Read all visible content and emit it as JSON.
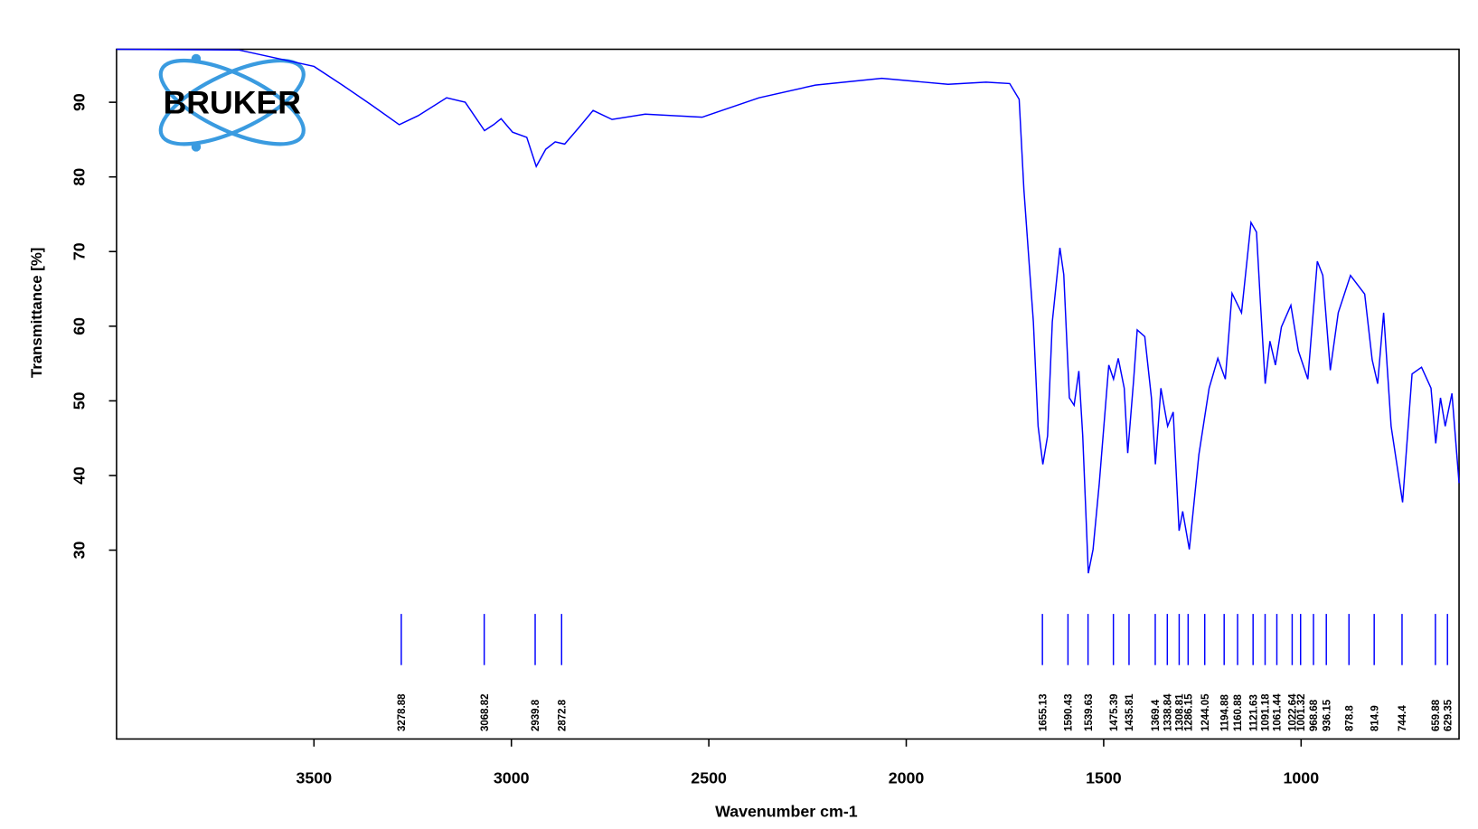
{
  "chart_data": {
    "type": "line",
    "logo": "BRUKER",
    "xlabel": "Wavenumber cm-1",
    "ylabel": "Transmittance [%]",
    "xlim": [
      4000,
      600
    ],
    "ylim": [
      4.7,
      97.1
    ],
    "xticks": [
      3500,
      3000,
      2500,
      2000,
      1500,
      1000
    ],
    "yticks": [
      30,
      40,
      50,
      60,
      70,
      80,
      90
    ],
    "color": "#0000ff",
    "x": [
      4000,
      3690,
      3500,
      3428,
      3356,
      3284,
      3236,
      3164,
      3117,
      3068,
      3045,
      3026,
      2997,
      2961,
      2937,
      2913,
      2889,
      2865,
      2829,
      2793,
      2745,
      2661,
      2517,
      2373,
      2230,
      2062,
      1894,
      1798,
      1738,
      1714,
      1702,
      1690,
      1678,
      1666,
      1654,
      1642,
      1630,
      1611,
      1601,
      1587,
      1575,
      1563,
      1553,
      1539,
      1527,
      1511,
      1487,
      1475,
      1463,
      1448,
      1439,
      1424,
      1415,
      1396,
      1379,
      1369,
      1355,
      1338,
      1324,
      1309,
      1300,
      1283,
      1259,
      1233,
      1211,
      1192,
      1175,
      1151,
      1127,
      1113,
      1103,
      1091,
      1079,
      1065,
      1050,
      1026,
      1007,
      983,
      959,
      945,
      926,
      906,
      875,
      839,
      820,
      806,
      791,
      772,
      743,
      719,
      695,
      671,
      659,
      647,
      635,
      618,
      600
    ],
    "values": [
      97.1,
      97,
      94.8,
      92.3,
      89.7,
      87,
      88.2,
      90.6,
      90,
      86.2,
      87,
      87.8,
      86,
      85.3,
      81.4,
      83.7,
      84.7,
      84.4,
      86.6,
      88.9,
      87.7,
      88.4,
      88,
      90.6,
      92.3,
      93.2,
      92.4,
      92.7,
      92.5,
      90.4,
      78.3,
      69.4,
      60.6,
      46.6,
      41.5,
      45.3,
      60.6,
      70.5,
      66.9,
      50.4,
      49.4,
      54,
      45.3,
      26.9,
      30.1,
      39,
      54.8,
      52.9,
      55.7,
      51.7,
      43,
      52.9,
      59.5,
      58.6,
      50.4,
      41.5,
      51.7,
      46.6,
      48.5,
      32.6,
      35.2,
      30.1,
      42.8,
      51.7,
      55.7,
      52.9,
      64.4,
      61.8,
      73.9,
      72.6,
      63.1,
      52.3,
      58,
      54.8,
      59.9,
      62.8,
      56.7,
      52.9,
      68.7,
      66.8,
      54.1,
      61.8,
      66.8,
      64.3,
      55.5,
      52.3,
      61.8,
      46.6,
      36.4,
      53.6,
      54.5,
      51.7,
      44.3,
      50.4,
      46.6,
      51,
      39
    ],
    "peaks": [
      3278.88,
      3068.82,
      2939.8,
      2872.8,
      1655.13,
      1590.43,
      1539.63,
      1475.39,
      1435.81,
      1369.4,
      1338.84,
      1308.81,
      1286.15,
      1244.05,
      1194.88,
      1160.88,
      1121.63,
      1091.18,
      1061.44,
      1022.64,
      1001.32,
      968.68,
      936.15,
      878.8,
      814.9,
      744.4,
      659.88,
      629.35
    ]
  }
}
